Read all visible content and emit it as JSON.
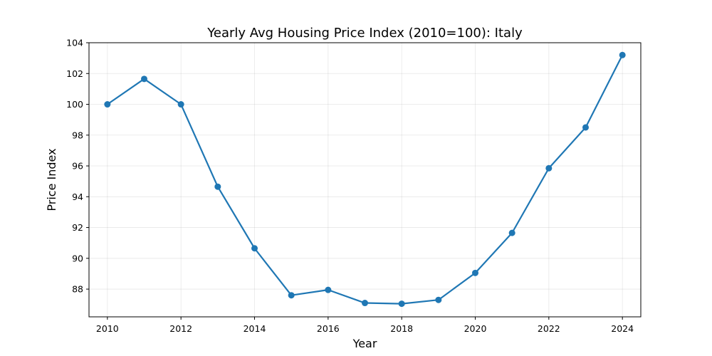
{
  "chart_data": {
    "type": "line",
    "title": "Yearly Avg Housing Price Index (2010=100): Italy",
    "xlabel": "Year",
    "ylabel": "Price Index",
    "xlim": [
      2009.5,
      2024.5
    ],
    "ylim": [
      86.2,
      104.0
    ],
    "xticks": [
      2010,
      2012,
      2014,
      2016,
      2018,
      2020,
      2022,
      2024
    ],
    "yticks": [
      88,
      90,
      92,
      94,
      96,
      98,
      100,
      102,
      104
    ],
    "grid": true,
    "series": [
      {
        "color": "#1f77b4",
        "marker": "circle",
        "x": [
          2010,
          2011,
          2012,
          2013,
          2014,
          2015,
          2016,
          2017,
          2018,
          2019,
          2020,
          2021,
          2022,
          2023,
          2024
        ],
        "y": [
          100.0,
          101.65,
          100.0,
          94.65,
          90.65,
          87.6,
          87.95,
          87.1,
          87.05,
          87.3,
          89.05,
          91.65,
          95.85,
          98.5,
          103.2
        ]
      }
    ]
  }
}
